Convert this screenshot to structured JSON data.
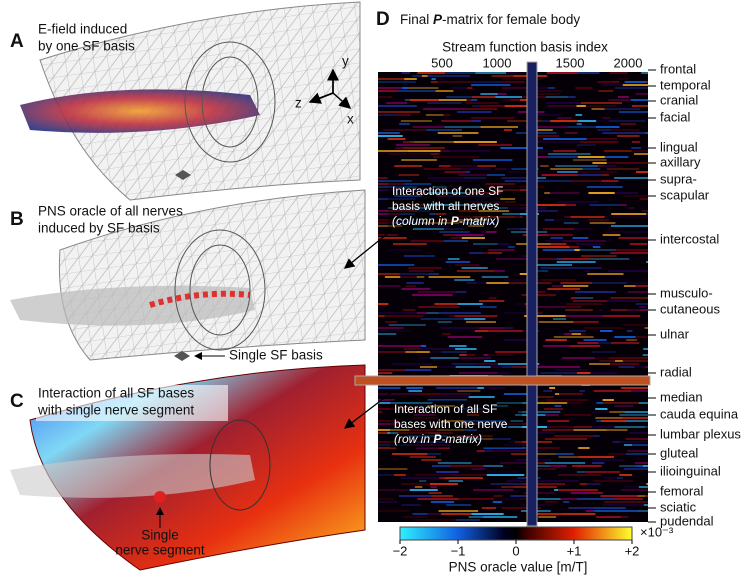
{
  "panel_a": {
    "letter": "A",
    "lines": [
      "E-field induced",
      "by one SF basis"
    ],
    "axes": [
      "y",
      "z",
      "x"
    ]
  },
  "panel_b": {
    "letter": "B",
    "lines": [
      "PNS oracle of all nerves",
      "induced by SF basis"
    ],
    "callout": "Single SF basis"
  },
  "panel_c": {
    "letter": "C",
    "lines": [
      "Interaction of all SF bases",
      "with single nerve segment"
    ],
    "callout": [
      "Single",
      "nerve segment"
    ]
  },
  "panel_d": {
    "letter": "D",
    "title": [
      "Final ",
      "P",
      "-matrix for female body"
    ],
    "x_axis_label": "Stream function basis index",
    "x_ticks": [
      "500",
      "1000",
      "1500",
      "2000"
    ],
    "column_note": {
      "lines": [
        "Interaction of one SF",
        "basis with all nerves"
      ],
      "last": [
        "(column in ",
        "P",
        "-matrix)"
      ]
    },
    "row_note": {
      "lines": [
        "Interaction of all SF",
        "bases with one nerve"
      ],
      "last": [
        "(row in ",
        "P",
        "-matrix)"
      ]
    },
    "nerves": [
      "frontal",
      "temporal",
      "cranial",
      "facial",
      "lingual",
      "axillary",
      "supra-",
      "scapular",
      "intercostal",
      "musculo-",
      "cutaneous",
      "ulnar",
      "radial",
      "median",
      "cauda equina",
      "lumbar plexus",
      "gluteal",
      "ilioinguinal",
      "femoral",
      "sciatic",
      "pudendal"
    ],
    "colorbar": {
      "ticks": [
        "−2",
        "−1",
        "0",
        "+1",
        "+2"
      ],
      "exponent": "×10⁻³",
      "label": "PNS oracle value [m/T]"
    }
  }
}
